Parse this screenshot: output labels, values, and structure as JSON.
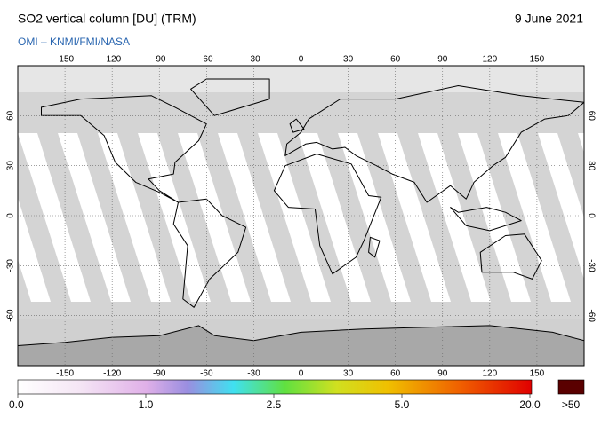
{
  "header": {
    "title": "SO2 vertical column [DU] (TRM)",
    "date": "9 June 2021",
    "credit": "OMI  –  KNMI/FMI/NASA"
  },
  "map": {
    "xlim": [
      -180,
      180
    ],
    "ylim": [
      -90,
      90
    ],
    "lon_ticks": [
      -150,
      -120,
      -90,
      -60,
      -30,
      0,
      30,
      60,
      90,
      120,
      150
    ],
    "lat_ticks": [
      -60,
      -30,
      0,
      30,
      60
    ]
  },
  "colorbar": {
    "ticks": [
      {
        "value": 0,
        "label": "0.0"
      },
      {
        "value": 1,
        "label": "1.0"
      },
      {
        "value": 2.5,
        "label": "2.5"
      },
      {
        "value": 5,
        "label": "5.0"
      },
      {
        "value": 20,
        "label": "20.0"
      }
    ],
    "overflow_label": ">50"
  }
}
